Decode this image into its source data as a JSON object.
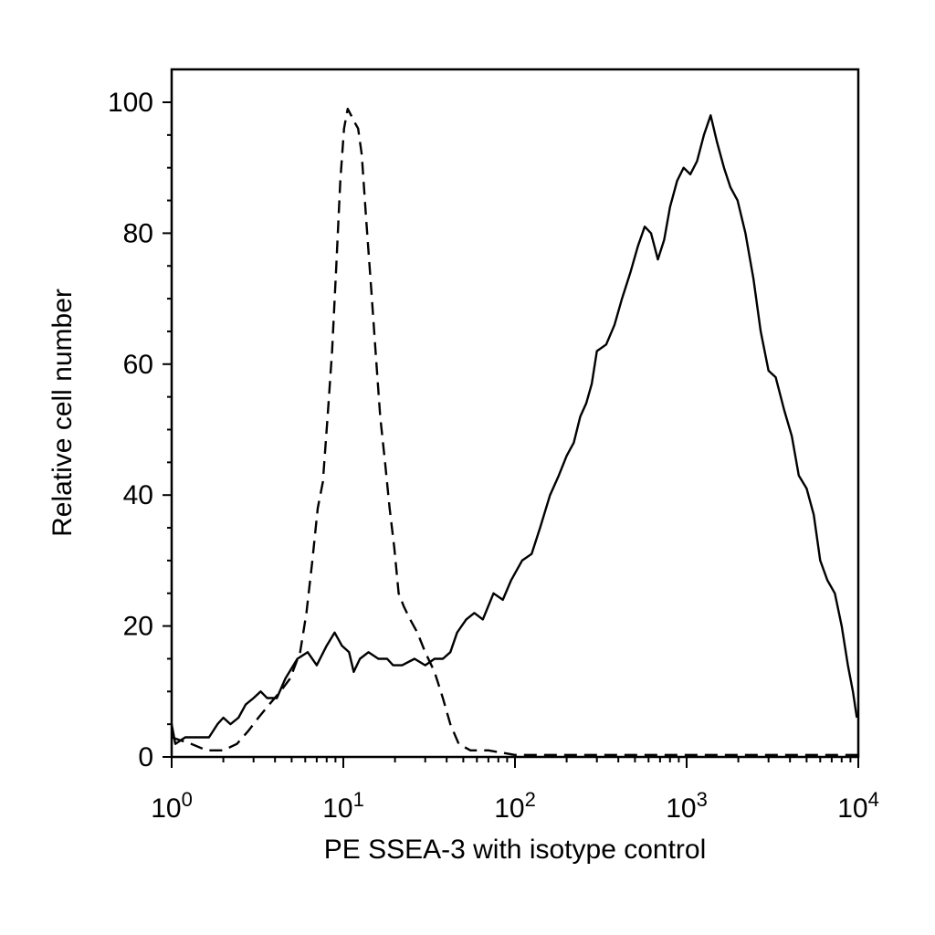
{
  "chart_data": {
    "type": "line",
    "xlabel": "PE SSEA-3 with isotype control",
    "ylabel": "Relative cell number",
    "xscale": "log",
    "xlim": [
      1,
      10000
    ],
    "ylim": [
      0,
      100
    ],
    "grid": false,
    "x_ticks": [
      {
        "value": 1,
        "base": "10",
        "exp": "0"
      },
      {
        "value": 10,
        "base": "10",
        "exp": "1"
      },
      {
        "value": 100,
        "base": "10",
        "exp": "2"
      },
      {
        "value": 1000,
        "base": "10",
        "exp": "3"
      },
      {
        "value": 10000,
        "base": "10",
        "exp": "4"
      }
    ],
    "y_ticks": [
      {
        "value": 0,
        "label": "0"
      },
      {
        "value": 20,
        "label": "20"
      },
      {
        "value": 40,
        "label": "40"
      },
      {
        "value": 60,
        "label": "60"
      },
      {
        "value": 80,
        "label": "80"
      },
      {
        "value": 100,
        "label": "100"
      }
    ],
    "series": [
      {
        "style": "solid",
        "color": "#000000",
        "points": [
          [
            1.0,
            5
          ],
          [
            1.05,
            2
          ],
          [
            1.2,
            3
          ],
          [
            1.45,
            3
          ],
          [
            1.65,
            3
          ],
          [
            1.85,
            5
          ],
          [
            2.0,
            6
          ],
          [
            2.2,
            5
          ],
          [
            2.45,
            6
          ],
          [
            2.7,
            8
          ],
          [
            3.0,
            9
          ],
          [
            3.3,
            10
          ],
          [
            3.6,
            9
          ],
          [
            4.1,
            9
          ],
          [
            4.6,
            12
          ],
          [
            5.4,
            15
          ],
          [
            6.2,
            16
          ],
          [
            7.0,
            14
          ],
          [
            8.0,
            17
          ],
          [
            8.9,
            19
          ],
          [
            9.8,
            17
          ],
          [
            10.8,
            16
          ],
          [
            11.5,
            13
          ],
          [
            12.5,
            15
          ],
          [
            14.0,
            16
          ],
          [
            16.0,
            15
          ],
          [
            18.0,
            15
          ],
          [
            19.5,
            14
          ],
          [
            22.0,
            14
          ],
          [
            26.0,
            15
          ],
          [
            30.0,
            14
          ],
          [
            34.0,
            15
          ],
          [
            38.0,
            15
          ],
          [
            42.0,
            16
          ],
          [
            46.0,
            19
          ],
          [
            52.0,
            21
          ],
          [
            58.0,
            22
          ],
          [
            65.0,
            21
          ],
          [
            75.0,
            25
          ],
          [
            85.0,
            24
          ],
          [
            95.0,
            27
          ],
          [
            110.0,
            30
          ],
          [
            125.0,
            31
          ],
          [
            140.0,
            35
          ],
          [
            160.0,
            40
          ],
          [
            180.0,
            43
          ],
          [
            200.0,
            46
          ],
          [
            220.0,
            48
          ],
          [
            240.0,
            52
          ],
          [
            260.0,
            54
          ],
          [
            280.0,
            57
          ],
          [
            300.0,
            62
          ],
          [
            340.0,
            63
          ],
          [
            380.0,
            66
          ],
          [
            420.0,
            70
          ],
          [
            470.0,
            74
          ],
          [
            520.0,
            78
          ],
          [
            570.0,
            81
          ],
          [
            620.0,
            80
          ],
          [
            680.0,
            76
          ],
          [
            740.0,
            79
          ],
          [
            800.0,
            84
          ],
          [
            880.0,
            88
          ],
          [
            960.0,
            90
          ],
          [
            1050.0,
            89
          ],
          [
            1150.0,
            91
          ],
          [
            1260.0,
            95
          ],
          [
            1380.0,
            98
          ],
          [
            1500.0,
            94
          ],
          [
            1650.0,
            90
          ],
          [
            1800.0,
            87
          ],
          [
            1980.0,
            85
          ],
          [
            2200.0,
            80
          ],
          [
            2450.0,
            73
          ],
          [
            2700.0,
            65
          ],
          [
            3000.0,
            59
          ],
          [
            3300.0,
            58
          ],
          [
            3700.0,
            53
          ],
          [
            4100.0,
            49
          ],
          [
            4500.0,
            43
          ],
          [
            5000.0,
            41
          ],
          [
            5500.0,
            37
          ],
          [
            6000.0,
            30
          ],
          [
            6600.0,
            27
          ],
          [
            7300.0,
            25
          ],
          [
            8000.0,
            20
          ],
          [
            8700.0,
            14
          ],
          [
            9300.0,
            10
          ],
          [
            9800.0,
            6
          ]
        ]
      },
      {
        "style": "dashed",
        "color": "#000000",
        "points": [
          [
            1.0,
            3
          ],
          [
            1.3,
            2
          ],
          [
            1.6,
            1
          ],
          [
            2.0,
            1
          ],
          [
            2.4,
            2
          ],
          [
            2.8,
            4
          ],
          [
            3.2,
            6
          ],
          [
            3.7,
            8
          ],
          [
            4.3,
            10
          ],
          [
            4.9,
            12
          ],
          [
            5.6,
            16
          ],
          [
            6.1,
            22
          ],
          [
            6.6,
            30
          ],
          [
            7.1,
            38
          ],
          [
            7.6,
            42
          ],
          [
            8.1,
            52
          ],
          [
            8.6,
            62
          ],
          [
            9.1,
            75
          ],
          [
            9.6,
            88
          ],
          [
            10.1,
            96
          ],
          [
            10.6,
            99
          ],
          [
            11.1,
            98
          ],
          [
            11.6,
            97
          ],
          [
            12.2,
            96
          ],
          [
            12.8,
            92
          ],
          [
            13.6,
            82
          ],
          [
            14.5,
            72
          ],
          [
            15.4,
            62
          ],
          [
            16.4,
            52
          ],
          [
            17.5,
            45
          ],
          [
            18.6,
            38
          ],
          [
            19.8,
            32
          ],
          [
            21.0,
            25
          ],
          [
            22.5,
            23
          ],
          [
            24.5,
            21
          ],
          [
            27.0,
            19
          ],
          [
            30.0,
            16
          ],
          [
            34.0,
            13
          ],
          [
            38.0,
            9
          ],
          [
            42.0,
            5
          ],
          [
            47.0,
            2
          ],
          [
            55.0,
            1
          ],
          [
            70.0,
            1
          ],
          [
            100.0,
            0.3
          ],
          [
            300.0,
            0.3
          ],
          [
            1000.0,
            0.3
          ],
          [
            3000.0,
            0.3
          ],
          [
            10000.0,
            0.3
          ]
        ]
      }
    ]
  }
}
